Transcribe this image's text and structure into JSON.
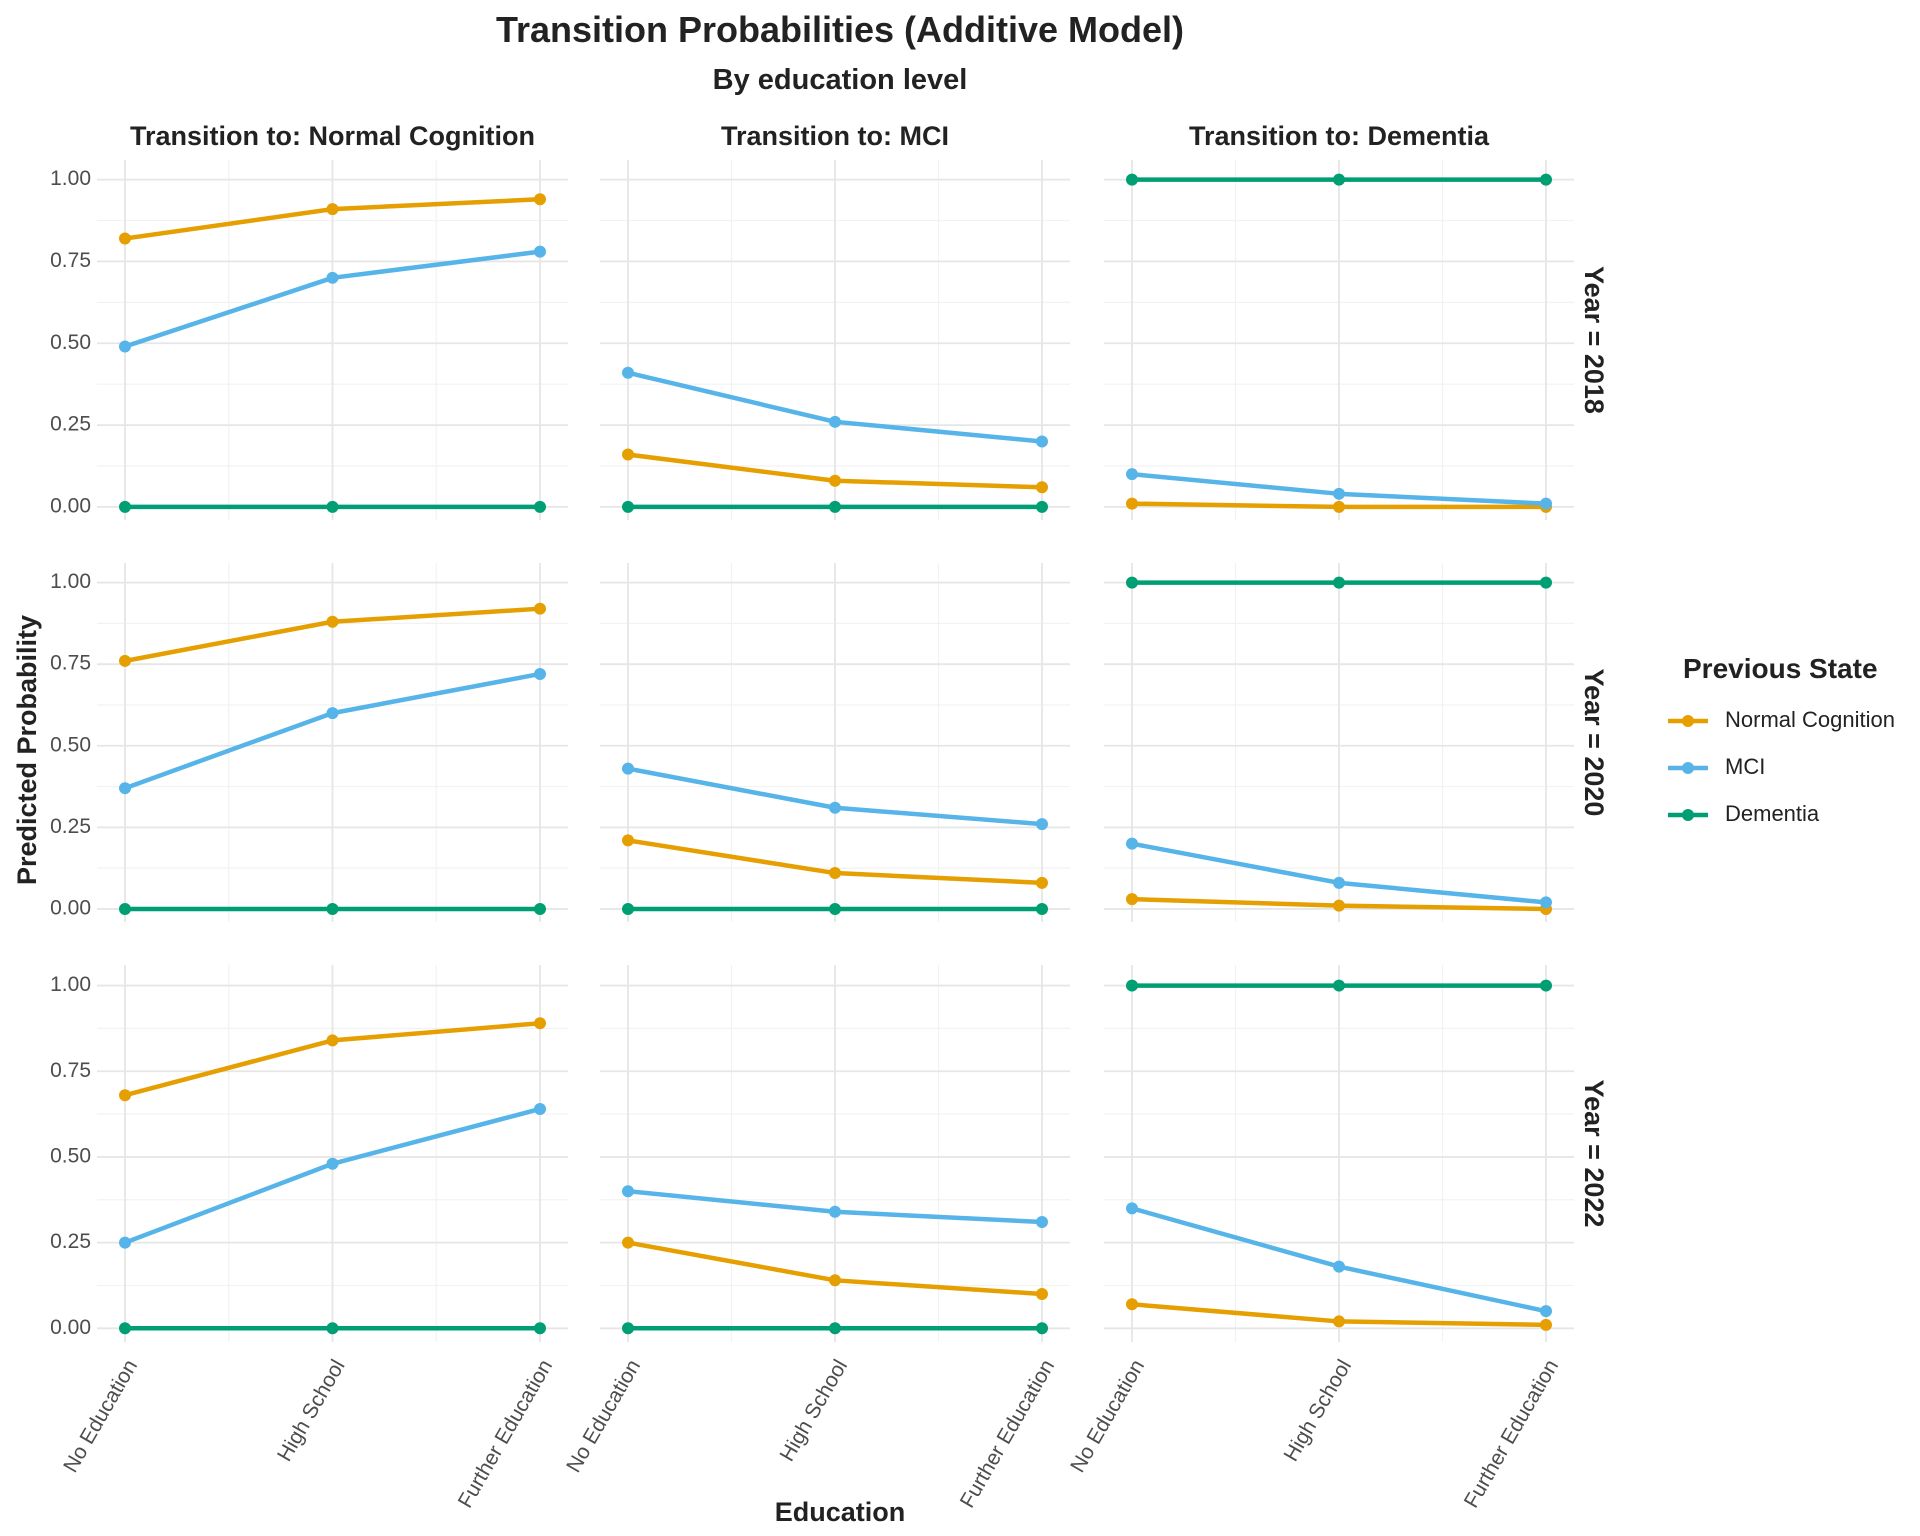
{
  "chart_data": {
    "type": "line",
    "title": "Transition Probabilities (Additive Model)",
    "subtitle": "By education level",
    "xlabel": "Education",
    "ylabel": "Predicted Probability",
    "categories": [
      "No Education",
      "High School",
      "Further Education"
    ],
    "ylim": [
      -0.04,
      1.06
    ],
    "yticks": [
      0.0,
      0.25,
      0.5,
      0.75,
      1.0
    ],
    "ytick_labels": [
      "0.00",
      "0.25",
      "0.50",
      "0.75",
      "1.00"
    ],
    "grid": true,
    "legend": {
      "title": "Previous State",
      "position": "right",
      "entries": [
        "Normal Cognition",
        "MCI",
        "Dementia"
      ]
    },
    "colors": {
      "Normal Cognition": "#E69F00",
      "MCI": "#56B4E9",
      "Dementia": "#009E73"
    },
    "columns": [
      "Transition to: Normal Cognition",
      "Transition to: MCI",
      "Transition to: Dementia"
    ],
    "rows": [
      "Year = 2018",
      "Year = 2020",
      "Year = 2022"
    ],
    "panels": [
      [
        {
          "series": [
            {
              "name": "Normal Cognition",
              "values": [
                0.82,
                0.91,
                0.94
              ]
            },
            {
              "name": "MCI",
              "values": [
                0.49,
                0.7,
                0.78
              ]
            },
            {
              "name": "Dementia",
              "values": [
                0.0,
                0.0,
                0.0
              ]
            }
          ]
        },
        {
          "series": [
            {
              "name": "Normal Cognition",
              "values": [
                0.16,
                0.08,
                0.06
              ]
            },
            {
              "name": "MCI",
              "values": [
                0.41,
                0.26,
                0.2
              ]
            },
            {
              "name": "Dementia",
              "values": [
                0.0,
                0.0,
                0.0
              ]
            }
          ]
        },
        {
          "series": [
            {
              "name": "Normal Cognition",
              "values": [
                0.01,
                0.0,
                0.0
              ]
            },
            {
              "name": "MCI",
              "values": [
                0.1,
                0.04,
                0.01
              ]
            },
            {
              "name": "Dementia",
              "values": [
                1.0,
                1.0,
                1.0
              ]
            }
          ]
        }
      ],
      [
        {
          "series": [
            {
              "name": "Normal Cognition",
              "values": [
                0.76,
                0.88,
                0.92
              ]
            },
            {
              "name": "MCI",
              "values": [
                0.37,
                0.6,
                0.72
              ]
            },
            {
              "name": "Dementia",
              "values": [
                0.0,
                0.0,
                0.0
              ]
            }
          ]
        },
        {
          "series": [
            {
              "name": "Normal Cognition",
              "values": [
                0.21,
                0.11,
                0.08
              ]
            },
            {
              "name": "MCI",
              "values": [
                0.43,
                0.31,
                0.26
              ]
            },
            {
              "name": "Dementia",
              "values": [
                0.0,
                0.0,
                0.0
              ]
            }
          ]
        },
        {
          "series": [
            {
              "name": "Normal Cognition",
              "values": [
                0.03,
                0.01,
                0.0
              ]
            },
            {
              "name": "MCI",
              "values": [
                0.2,
                0.08,
                0.02
              ]
            },
            {
              "name": "Dementia",
              "values": [
                1.0,
                1.0,
                1.0
              ]
            }
          ]
        }
      ],
      [
        {
          "series": [
            {
              "name": "Normal Cognition",
              "values": [
                0.68,
                0.84,
                0.89
              ]
            },
            {
              "name": "MCI",
              "values": [
                0.25,
                0.48,
                0.64
              ]
            },
            {
              "name": "Dementia",
              "values": [
                0.0,
                0.0,
                0.0
              ]
            }
          ]
        },
        {
          "series": [
            {
              "name": "Normal Cognition",
              "values": [
                0.25,
                0.14,
                0.1
              ]
            },
            {
              "name": "MCI",
              "values": [
                0.4,
                0.34,
                0.31
              ]
            },
            {
              "name": "Dementia",
              "values": [
                0.0,
                0.0,
                0.0
              ]
            }
          ]
        },
        {
          "series": [
            {
              "name": "Normal Cognition",
              "values": [
                0.07,
                0.02,
                0.01
              ]
            },
            {
              "name": "MCI",
              "values": [
                0.35,
                0.18,
                0.05
              ]
            },
            {
              "name": "Dementia",
              "values": [
                1.0,
                1.0,
                1.0
              ]
            }
          ]
        }
      ]
    ]
  }
}
